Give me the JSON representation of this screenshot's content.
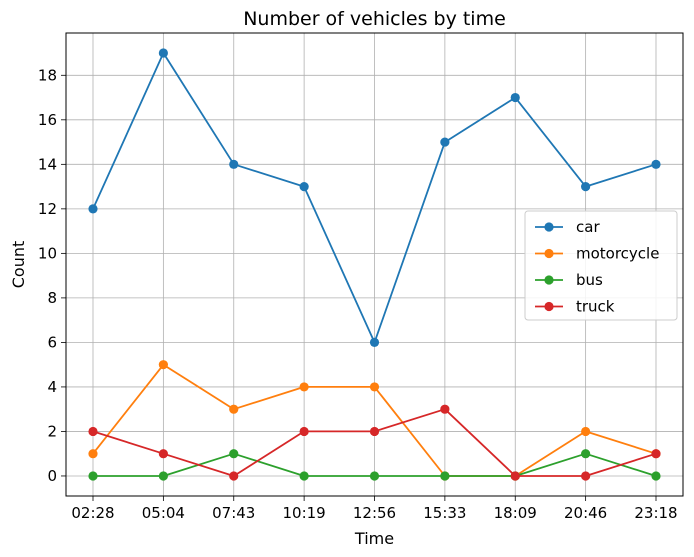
{
  "chart_data": {
    "type": "line",
    "title": "Number of vehicles by time",
    "xlabel": "Time",
    "ylabel": "Count",
    "categories": [
      "02:28",
      "05:04",
      "07:43",
      "10:19",
      "12:56",
      "15:33",
      "18:09",
      "20:46",
      "23:18"
    ],
    "ylim": [
      -0.9,
      19.9
    ],
    "yticks": [
      0,
      2,
      4,
      6,
      8,
      10,
      12,
      14,
      16,
      18
    ],
    "grid": true,
    "legend_position": "center-right",
    "series": [
      {
        "name": "car",
        "color": "#1f77b4",
        "values": [
          12,
          19,
          14,
          13,
          6,
          15,
          17,
          13,
          14
        ]
      },
      {
        "name": "motorcycle",
        "color": "#ff7f0e",
        "values": [
          1,
          5,
          3,
          4,
          4,
          0,
          0,
          2,
          1
        ]
      },
      {
        "name": "bus",
        "color": "#2ca02c",
        "values": [
          0,
          0,
          1,
          0,
          0,
          0,
          0,
          1,
          0
        ]
      },
      {
        "name": "truck",
        "color": "#d62728",
        "values": [
          2,
          1,
          0,
          2,
          2,
          3,
          0,
          0,
          1
        ]
      }
    ]
  }
}
